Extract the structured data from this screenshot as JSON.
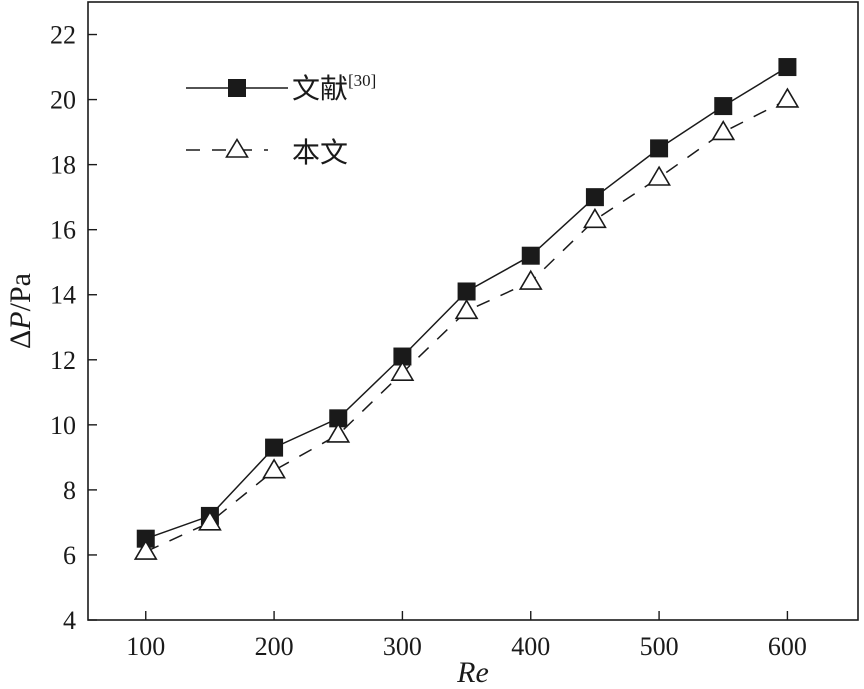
{
  "chart_data": {
    "type": "line",
    "xlabel": "Re",
    "ylabel": {
      "prefix": "Δ",
      "variable": "P",
      "unit": "/Pa"
    },
    "xlim": [
      55,
      655
    ],
    "ylim": [
      4,
      23
    ],
    "xticks": [
      100,
      200,
      300,
      400,
      500,
      600
    ],
    "yticks": [
      4,
      6,
      8,
      10,
      12,
      14,
      16,
      18,
      20,
      22
    ],
    "x": [
      100,
      150,
      200,
      250,
      300,
      350,
      400,
      450,
      500,
      550,
      600
    ],
    "grid": false,
    "legend_position": "top-left",
    "series": [
      {
        "name": "文献",
        "name_superscript": "[30]",
        "marker": "filled-square",
        "line_style": "solid",
        "values": [
          6.5,
          7.2,
          9.3,
          10.2,
          12.1,
          14.1,
          15.2,
          17.0,
          18.5,
          19.8,
          21.0
        ]
      },
      {
        "name": "本文",
        "marker": "open-triangle",
        "line_style": "dashed",
        "values": [
          6.1,
          7.0,
          8.6,
          9.7,
          11.6,
          13.5,
          14.4,
          16.3,
          17.6,
          19.0,
          20.0
        ]
      }
    ]
  },
  "colors": {
    "ink": "#1a1a1a",
    "marker_fill": "#1a1a1a",
    "open_fill": "#ffffff"
  }
}
